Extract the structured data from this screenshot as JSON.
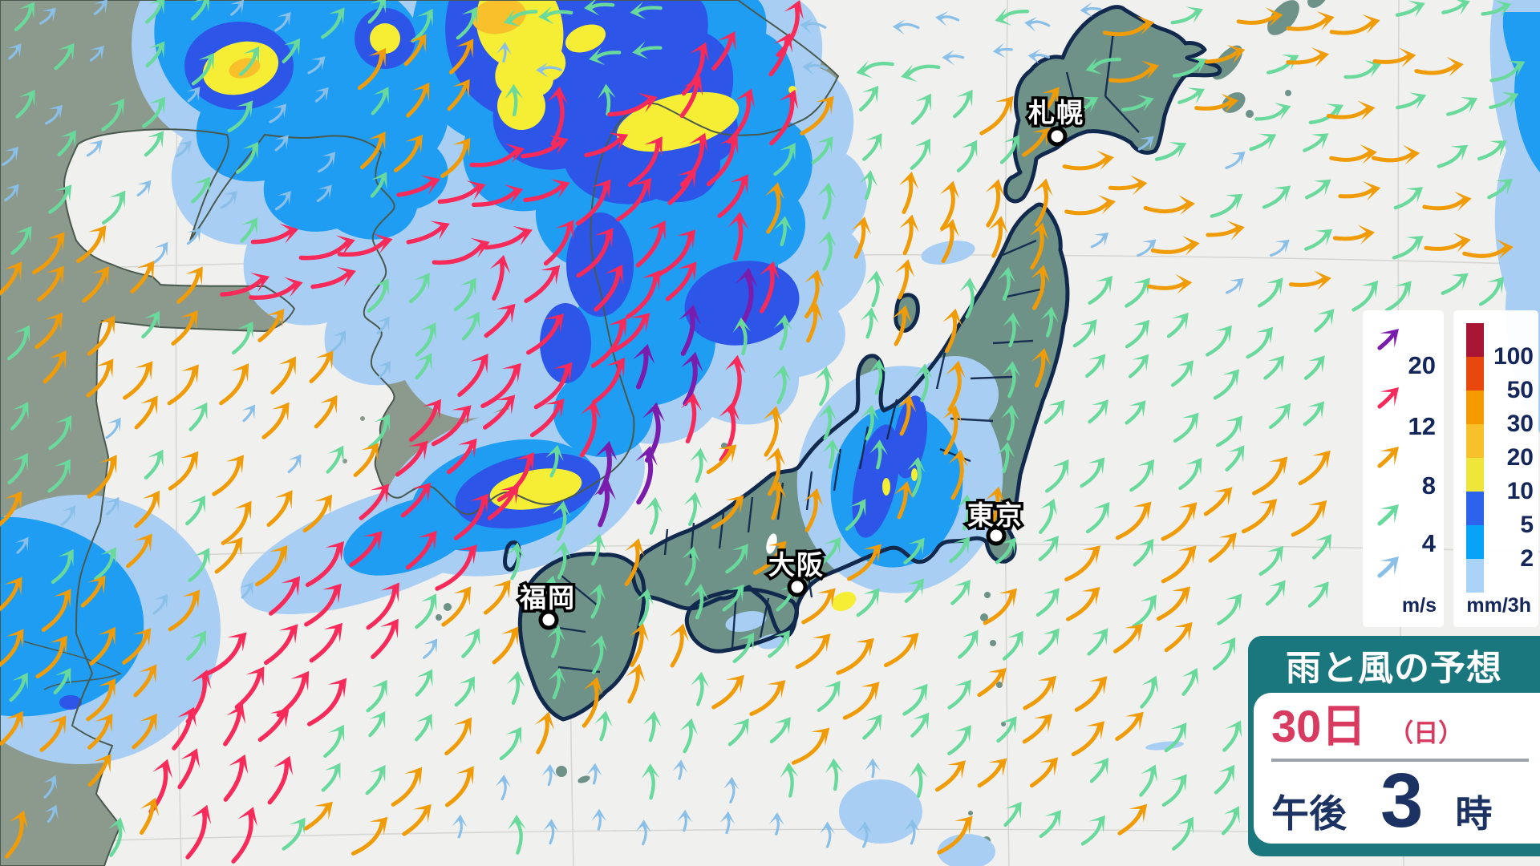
{
  "info_panel": {
    "title": "雨と風の予想",
    "date_day": "30日",
    "date_week": "（日）",
    "time_period": "午後",
    "time_value": "3",
    "time_unit": "時",
    "colors": {
      "header_bg": "#19777d",
      "date": "#d93a60",
      "time": "#1b3263",
      "divider": "#9aa2ab"
    }
  },
  "wind_legend": {
    "unit": "m/s",
    "items": [
      {
        "label": "20",
        "color": "#7a1dad"
      },
      {
        "label": "12",
        "color": "#f72a59"
      },
      {
        "label": "8",
        "color": "#f09c08"
      },
      {
        "label": "4",
        "color": "#69d99c"
      },
      {
        "label": "",
        "color": "#8abfe8"
      }
    ]
  },
  "rain_legend": {
    "unit": "mm/3h",
    "labels": [
      "100",
      "50",
      "30",
      "20",
      "10",
      "5",
      "2"
    ],
    "colors": [
      "#a81535",
      "#e8470e",
      "#f59b00",
      "#f8c12b",
      "#efe63b",
      "#2d62ed",
      "#06a3f7",
      "#a9d4f8"
    ]
  },
  "cities": [
    {
      "name": "札幌"
    },
    {
      "name": "東京"
    },
    {
      "name": "大阪"
    },
    {
      "name": "福岡"
    }
  ],
  "map_palette": {
    "sea": "#f0f0ee",
    "land": "#8c9a8d",
    "coastline": "#49594f",
    "japan_fill": "#6e9288",
    "japan_border": "#12294e",
    "graticule": "#d6d6d3",
    "lake": "#ffffff"
  },
  "rain_palette": {
    "light": "#a9cef4",
    "moderate": "#1f9df3",
    "heavy": "#2d55e8",
    "very_heavy": "#f5ee35",
    "intense": "#f8c12b"
  },
  "wind_palette": {
    "calm": "#8abfe8",
    "light": "#69d99c",
    "moderate": "#f09c08",
    "strong": "#f72a59",
    "violent": "#7a1dad"
  }
}
